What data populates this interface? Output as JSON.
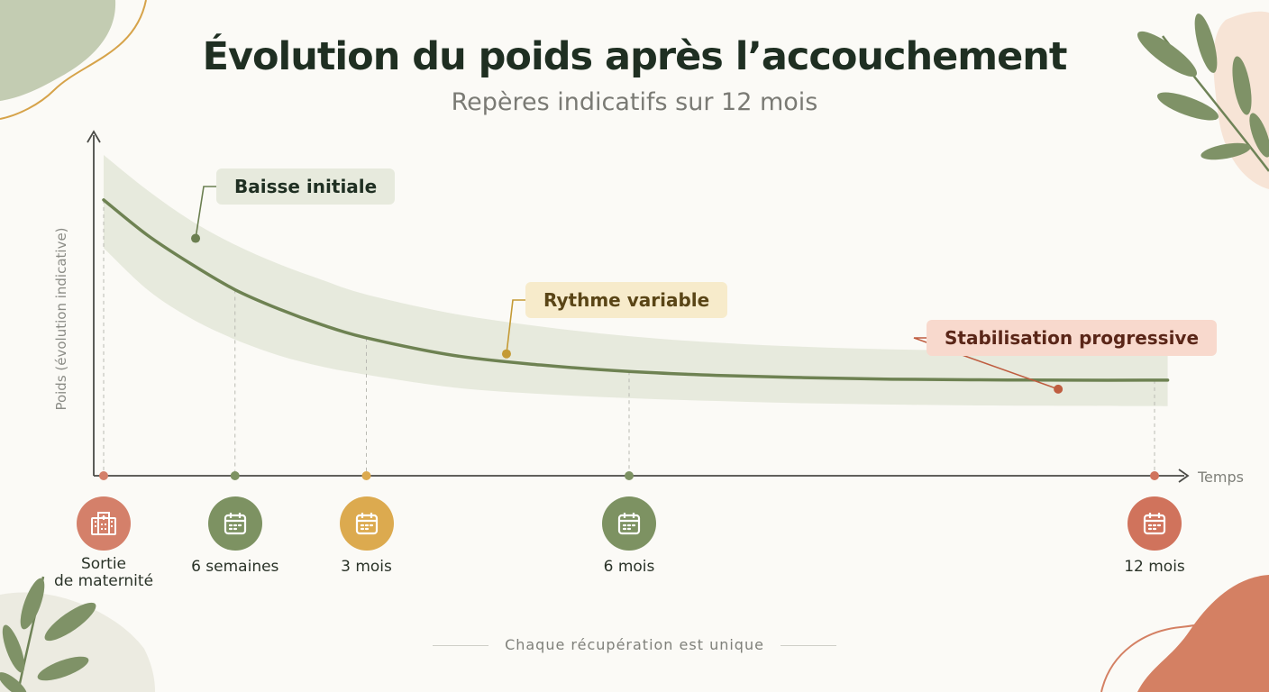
{
  "header": {
    "title": "Évolution du poids après l’accouchement",
    "subtitle": "Repères indicatifs sur 12 mois"
  },
  "chart_data": {
    "type": "area",
    "title": "Évolution du poids après l’accouchement",
    "subtitle": "Repères indicatifs sur 12 mois",
    "ylabel": "Poids (évolution indicative)",
    "xlabel": "Temps",
    "x_unit": "mois",
    "xlim": [
      0,
      12
    ],
    "ylim": [
      0,
      100
    ],
    "grid": false,
    "series": [
      {
        "x": [
          0,
          0.5,
          1,
          1.5,
          2,
          2.5,
          3,
          4,
          5,
          6,
          7,
          8,
          9,
          10,
          11,
          12.15
        ],
        "values": [
          86,
          75,
          66,
          58,
          52,
          47,
          43,
          37.5,
          34.5,
          32.5,
          31.3,
          30.6,
          30.1,
          29.9,
          29.8,
          29.8
        ],
        "band_upper": [
          100,
          89,
          79.5,
          72,
          66,
          61,
          56.5,
          50.5,
          46.5,
          43.5,
          41.5,
          40.2,
          39.4,
          39,
          38.8,
          38.7
        ],
        "band_lower": [
          71,
          58,
          49,
          42.5,
          37.5,
          34,
          31.5,
          27.5,
          25.5,
          24.2,
          23.3,
          22.6,
          22.2,
          21.9,
          21.8,
          21.7
        ]
      }
    ],
    "milestones": [
      {
        "x": 0,
        "label_lines": [
          "Sortie",
          "de maternité"
        ],
        "icon": "hospital-icon",
        "color": "#d4806a"
      },
      {
        "x": 1.5,
        "label_lines": [
          "6 semaines"
        ],
        "icon": "calendar-icon",
        "color": "#7d9262"
      },
      {
        "x": 3,
        "label_lines": [
          "3 mois"
        ],
        "icon": "calendar-icon",
        "color": "#dcaa4f"
      },
      {
        "x": 6,
        "label_lines": [
          "6 mois"
        ],
        "icon": "calendar-icon",
        "color": "#7d9262"
      },
      {
        "x": 12,
        "label_lines": [
          "12 mois"
        ],
        "icon": "calendar-icon",
        "color": "#d0735c"
      }
    ],
    "annotations": [
      {
        "text": "Baisse initiale",
        "x": 1.05,
        "y": 74,
        "bg": "#e7eadd",
        "dot": "#6b7f50"
      },
      {
        "text": "Rythme variable",
        "x": 4.6,
        "y": 38,
        "bg": "#f7ebcb",
        "dot": "#c49a35"
      },
      {
        "text": "Stabilisation progressive",
        "x": 10.9,
        "y": 27,
        "bg": "#f8d9cd",
        "dot": "#bf5d40"
      }
    ]
  },
  "footer": {
    "text": "Chaque récupération est unique"
  },
  "colors": {
    "curve": "#6e8252",
    "band": "#e7eadd",
    "axis": "#4a4a46",
    "leaf": "#7f9267",
    "blob_peach": "#f7e4d6",
    "blob_terracotta": "#d48063"
  }
}
